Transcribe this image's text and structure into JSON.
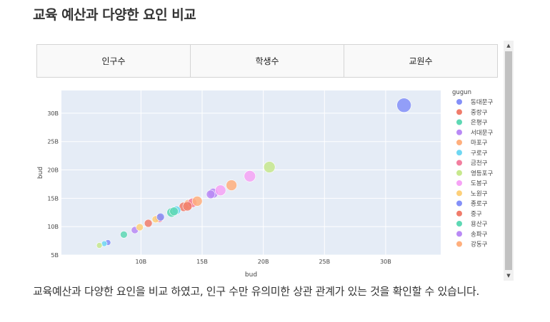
{
  "page": {
    "title": "교육 예산과 다양한 요인 비교",
    "description": "교육예산과 다양한 요인을 비교 하였고, 인구 수만 유의미한 상관 관계가 있는 것을 확인할 수 있습니다."
  },
  "tabs": [
    {
      "label": "인구수"
    },
    {
      "label": "학생수"
    },
    {
      "label": "교원수"
    }
  ],
  "scrollbar": {
    "up_icon": "▲",
    "down_icon": "▼"
  },
  "chart_data": {
    "type": "scatter",
    "xlabel": "bud",
    "ylabel": "bud",
    "xlim": [
      3.5,
      34.5
    ],
    "ylim": [
      5,
      34
    ],
    "x_ticks": [
      10,
      15,
      20,
      25,
      30
    ],
    "x_tick_labels": [
      "10B",
      "15B",
      "20B",
      "25B",
      "30B"
    ],
    "y_ticks": [
      5,
      10,
      15,
      20,
      25,
      30
    ],
    "y_tick_labels": [
      "5B",
      "10B",
      "15B",
      "20B",
      "25B",
      "30B"
    ],
    "grid": true,
    "legend_title": "gugun",
    "legend_position": "right",
    "series": [
      {
        "name": "동대문구",
        "color": "#8490f8",
        "points": [
          {
            "x": 31.5,
            "y": 31.4,
            "s": 10
          },
          {
            "x": 7.3,
            "y": 7.2,
            "s": 4
          }
        ]
      },
      {
        "name": "중랑구",
        "color": "#f07c6b",
        "points": [
          {
            "x": 10.6,
            "y": 10.6,
            "s": 5.5
          },
          {
            "x": 13.5,
            "y": 13.5,
            "s": 6.5
          }
        ]
      },
      {
        "name": "은평구",
        "color": "#5ed8b4",
        "points": [
          {
            "x": 8.6,
            "y": 8.6,
            "s": 5
          },
          {
            "x": 12.5,
            "y": 12.5,
            "s": 6.5
          }
        ]
      },
      {
        "name": "서대문구",
        "color": "#b98af5",
        "points": [
          {
            "x": 9.5,
            "y": 9.4,
            "s": 5
          },
          {
            "x": 15.9,
            "y": 15.9,
            "s": 7
          }
        ]
      },
      {
        "name": "마포구",
        "color": "#ffaf7d",
        "points": [
          {
            "x": 13.9,
            "y": 13.9,
            "s": 7
          },
          {
            "x": 17.4,
            "y": 17.3,
            "s": 7.5
          }
        ]
      },
      {
        "name": "구로구",
        "color": "#6fd7f2",
        "points": [
          {
            "x": 7.0,
            "y": 7.0,
            "s": 4
          },
          {
            "x": 12.9,
            "y": 12.9,
            "s": 6
          }
        ]
      },
      {
        "name": "금천구",
        "color": "#f27f9f",
        "points": [
          {
            "x": 11.5,
            "y": 11.5,
            "s": 6
          },
          {
            "x": 14.2,
            "y": 14.2,
            "s": 6.5
          }
        ]
      },
      {
        "name": "영등포구",
        "color": "#c7e88d",
        "points": [
          {
            "x": 6.6,
            "y": 6.7,
            "s": 4
          },
          {
            "x": 20.5,
            "y": 20.5,
            "s": 8
          }
        ]
      },
      {
        "name": "도봉구",
        "color": "#f6a3f5",
        "points": [
          {
            "x": 16.5,
            "y": 16.4,
            "s": 7.5
          },
          {
            "x": 18.9,
            "y": 18.9,
            "s": 8
          }
        ]
      },
      {
        "name": "노원구",
        "color": "#fdd07a",
        "points": [
          {
            "x": 9.9,
            "y": 9.9,
            "s": 5
          },
          {
            "x": 11.2,
            "y": 11.3,
            "s": 5
          }
        ]
      },
      {
        "name": "종로구",
        "color": "#8490f8",
        "points": [
          {
            "x": 11.6,
            "y": 11.7,
            "s": 5.5
          }
        ]
      },
      {
        "name": "중구",
        "color": "#f07c6b",
        "points": [
          {
            "x": 13.8,
            "y": 13.6,
            "s": 6.5
          }
        ]
      },
      {
        "name": "용산구",
        "color": "#5ed8b4",
        "points": [
          {
            "x": 12.7,
            "y": 12.7,
            "s": 6
          }
        ]
      },
      {
        "name": "송파구",
        "color": "#b98af5",
        "points": [
          {
            "x": 15.7,
            "y": 15.7,
            "s": 6
          }
        ]
      },
      {
        "name": "강동구",
        "color": "#ffaf7d",
        "points": [
          {
            "x": 14.6,
            "y": 14.5,
            "s": 7
          }
        ]
      }
    ]
  }
}
